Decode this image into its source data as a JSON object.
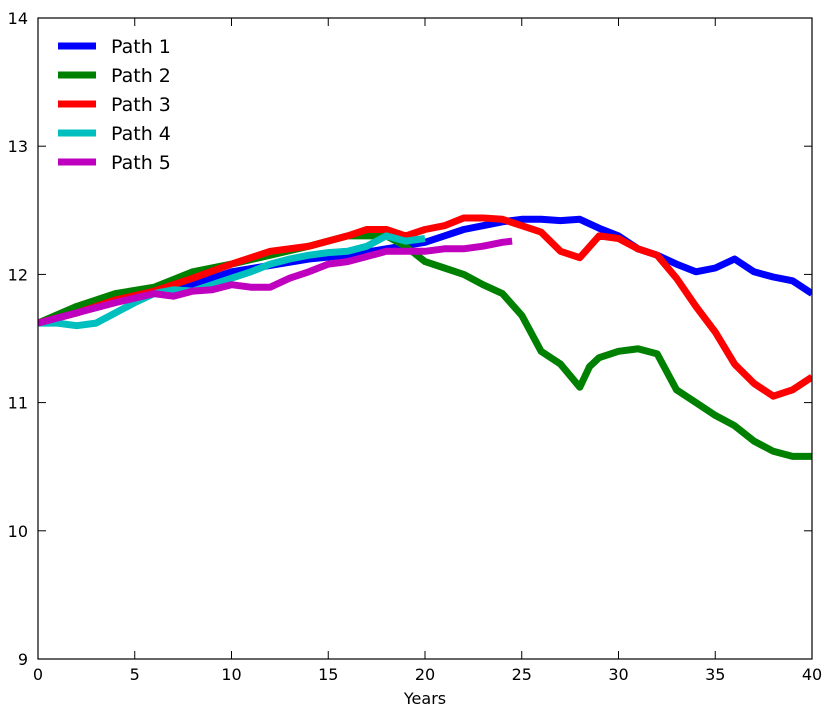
{
  "chart_data": {
    "type": "line",
    "title": "",
    "xlabel": "Years",
    "ylabel": "",
    "xlim": [
      0,
      40
    ],
    "ylim": [
      9,
      14
    ],
    "xticks": [
      0,
      5,
      10,
      15,
      20,
      25,
      30,
      35,
      40
    ],
    "yticks": [
      9,
      10,
      11,
      12,
      13,
      14
    ],
    "grid": false,
    "legend_position": "upper-left",
    "series": [
      {
        "name": "Path 1",
        "color": "#0000ff",
        "x": [
          0,
          2,
          4,
          6,
          8,
          10,
          12,
          14,
          16,
          18,
          20,
          21,
          22,
          23,
          24,
          25,
          26,
          27,
          28,
          29,
          30,
          31,
          32,
          33,
          34,
          35,
          36,
          37,
          38,
          39,
          40
        ],
        "y": [
          11.62,
          11.7,
          11.8,
          11.85,
          11.92,
          12.02,
          12.07,
          12.12,
          12.15,
          12.2,
          12.25,
          12.3,
          12.35,
          12.38,
          12.41,
          12.43,
          12.43,
          12.42,
          12.43,
          12.36,
          12.3,
          12.2,
          12.15,
          12.08,
          12.02,
          12.05,
          12.12,
          12.02,
          11.98,
          11.95,
          11.85
        ]
      },
      {
        "name": "Path 2",
        "color": "#008000",
        "x": [
          0,
          2,
          4,
          6,
          8,
          10,
          12,
          14,
          16,
          18,
          19,
          20,
          21,
          22,
          23,
          24,
          25,
          26,
          27,
          28,
          28.5,
          29,
          30,
          31,
          32,
          33,
          34,
          35,
          36,
          37,
          38,
          39,
          40
        ],
        "y": [
          11.62,
          11.75,
          11.85,
          11.9,
          12.02,
          12.08,
          12.15,
          12.22,
          12.3,
          12.3,
          12.22,
          12.1,
          12.05,
          12.0,
          11.92,
          11.85,
          11.68,
          11.4,
          11.3,
          11.12,
          11.28,
          11.35,
          11.4,
          11.42,
          11.38,
          11.1,
          11.0,
          10.9,
          10.82,
          10.7,
          10.62,
          10.58,
          10.58
        ]
      },
      {
        "name": "Path 3",
        "color": "#ff0000",
        "x": [
          0,
          2,
          4,
          6,
          8,
          10,
          12,
          14,
          16,
          17,
          18,
          19,
          20,
          21,
          22,
          23,
          24,
          25,
          26,
          27,
          28,
          29,
          30,
          31,
          32,
          33,
          34,
          35,
          36,
          37,
          38,
          39,
          40
        ],
        "y": [
          11.62,
          11.7,
          11.8,
          11.87,
          11.97,
          12.08,
          12.18,
          12.22,
          12.3,
          12.35,
          12.35,
          12.3,
          12.35,
          12.38,
          12.44,
          12.44,
          12.43,
          12.38,
          12.33,
          12.18,
          12.13,
          12.3,
          12.28,
          12.2,
          12.15,
          11.97,
          11.75,
          11.55,
          11.3,
          11.15,
          11.05,
          11.1,
          11.2
        ]
      },
      {
        "name": "Path 4",
        "color": "#00bfbf",
        "x": [
          0,
          1,
          2,
          3,
          4,
          5,
          6,
          7,
          8,
          9,
          10,
          11,
          12,
          13,
          14,
          15,
          16,
          17,
          18,
          19,
          20
        ],
        "y": [
          11.62,
          11.62,
          11.6,
          11.62,
          11.7,
          11.78,
          11.85,
          11.88,
          11.87,
          11.92,
          11.97,
          12.02,
          12.08,
          12.12,
          12.15,
          12.17,
          12.18,
          12.22,
          12.3,
          12.26,
          12.28
        ]
      },
      {
        "name": "Path 5",
        "color": "#bf00bf",
        "x": [
          0,
          2,
          4,
          6,
          7,
          8,
          9,
          10,
          11,
          12,
          13,
          14,
          15,
          16,
          17,
          18,
          19,
          20,
          21,
          22,
          23,
          24,
          24.5
        ],
        "y": [
          11.62,
          11.7,
          11.78,
          11.85,
          11.83,
          11.87,
          11.88,
          11.92,
          11.9,
          11.9,
          11.97,
          12.02,
          12.08,
          12.1,
          12.14,
          12.18,
          12.18,
          12.18,
          12.2,
          12.2,
          12.22,
          12.25,
          12.26
        ]
      }
    ]
  }
}
